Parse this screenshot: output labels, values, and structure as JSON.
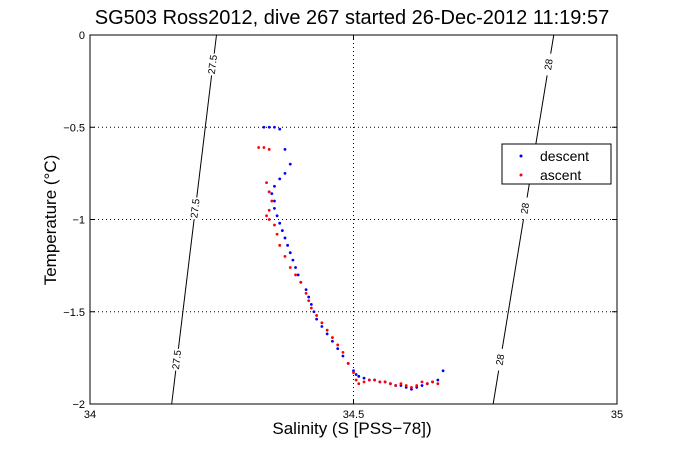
{
  "chart_data": {
    "type": "scatter",
    "title": "SG503 Ross2012, dive 267 started 26-Dec-2012 11:19:57",
    "xlabel": "Salinity (S [PSS−78])",
    "ylabel": "Temperature (°C)",
    "xlim": [
      34,
      35
    ],
    "ylim": [
      -2,
      0
    ],
    "xticks": [
      34,
      34.5,
      35
    ],
    "xtick_labels": [
      "34",
      "34.5",
      "35"
    ],
    "yticks": [
      0,
      -0.5,
      -1,
      -1.5,
      -2
    ],
    "ytick_labels": [
      "0",
      "-0.5",
      "-1",
      "-1.5",
      "-2"
    ],
    "grid": true,
    "legend_position": "right",
    "series": [
      {
        "name": "descent",
        "color": "#0000ff",
        "x": [
          34.33,
          34.34,
          34.35,
          34.36,
          34.37,
          34.38,
          34.37,
          34.36,
          34.35,
          34.345,
          34.35,
          34.35,
          34.355,
          34.36,
          34.365,
          34.37,
          34.375,
          34.38,
          34.385,
          34.39,
          34.395,
          34.4,
          34.41,
          34.415,
          34.42,
          34.425,
          34.43,
          34.44,
          34.45,
          34.46,
          34.47,
          34.48,
          34.49,
          34.5,
          34.505,
          34.51,
          34.52,
          34.53,
          34.54,
          34.55,
          34.56,
          34.57,
          34.58,
          34.59,
          34.6,
          34.61,
          34.62,
          34.63,
          34.64,
          34.65,
          34.66,
          34.67
        ],
        "y": [
          -0.5,
          -0.5,
          -0.5,
          -0.51,
          -0.62,
          -0.7,
          -0.75,
          -0.78,
          -0.82,
          -0.86,
          -0.9,
          -0.94,
          -0.98,
          -1.02,
          -1.06,
          -1.1,
          -1.14,
          -1.18,
          -1.22,
          -1.26,
          -1.3,
          -1.34,
          -1.38,
          -1.42,
          -1.46,
          -1.5,
          -1.54,
          -1.58,
          -1.62,
          -1.66,
          -1.7,
          -1.74,
          -1.78,
          -1.82,
          -1.84,
          -1.85,
          -1.86,
          -1.87,
          -1.87,
          -1.88,
          -1.88,
          -1.89,
          -1.9,
          -1.9,
          -1.91,
          -1.92,
          -1.91,
          -1.9,
          -1.89,
          -1.88,
          -1.87,
          -1.82
        ]
      },
      {
        "name": "ascent",
        "color": "#ff0000",
        "x": [
          34.32,
          34.33,
          34.34,
          34.335,
          34.34,
          34.345,
          34.34,
          34.335,
          34.34,
          34.35,
          34.355,
          34.36,
          34.37,
          34.38,
          34.39,
          34.4,
          34.41,
          34.415,
          34.42,
          34.43,
          34.44,
          34.45,
          34.46,
          34.47,
          34.48,
          34.49,
          34.5,
          34.505,
          34.51,
          34.52,
          34.53,
          34.54,
          34.55,
          34.56,
          34.57,
          34.58,
          34.59,
          34.6,
          34.61,
          34.62,
          34.63,
          34.64,
          34.65,
          34.66
        ],
        "y": [
          -0.61,
          -0.61,
          -0.62,
          -0.8,
          -0.85,
          -0.9,
          -0.95,
          -0.98,
          -1.0,
          -1.03,
          -1.08,
          -1.14,
          -1.2,
          -1.26,
          -1.3,
          -1.34,
          -1.4,
          -1.44,
          -1.48,
          -1.52,
          -1.56,
          -1.6,
          -1.64,
          -1.68,
          -1.72,
          -1.78,
          -1.83,
          -1.87,
          -1.89,
          -1.88,
          -1.87,
          -1.87,
          -1.88,
          -1.88,
          -1.89,
          -1.9,
          -1.89,
          -1.9,
          -1.91,
          -1.9,
          -1.88,
          -1.89,
          -1.88,
          -1.89
        ]
      }
    ],
    "contours": [
      {
        "label": "27.5",
        "x_top": 34.24,
        "x_bottom": 34.155
      },
      {
        "label": "28",
        "x_top": 34.88,
        "x_bottom": 34.765
      }
    ]
  }
}
